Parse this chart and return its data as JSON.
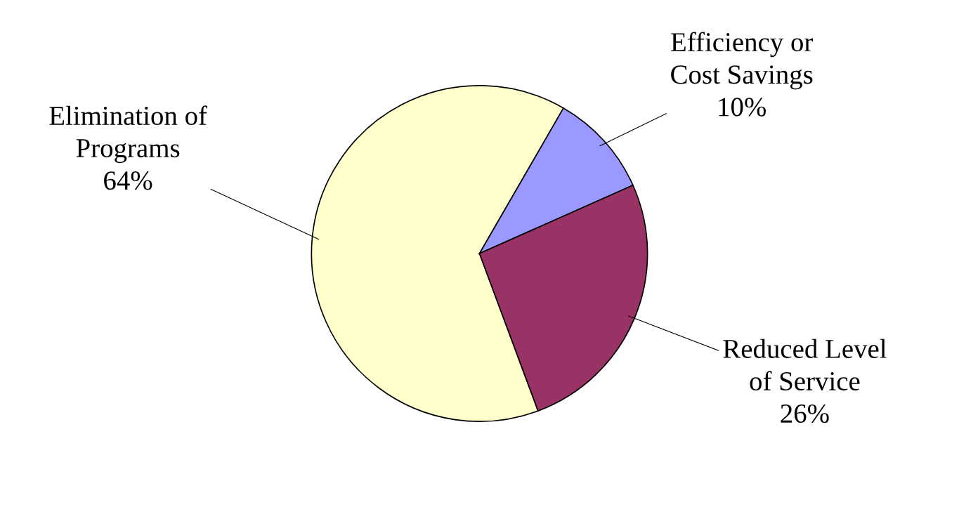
{
  "chart_data": {
    "type": "pie",
    "categories": [
      "Elimination of\nPrograms",
      "Efficiency or\nCost Savings",
      "Reduced Level\nof Service"
    ],
    "values": [
      64,
      10,
      26
    ],
    "value_labels": [
      "64%",
      "10%",
      "26%"
    ],
    "colors": [
      "#ffffcc",
      "#9999ff",
      "#993366"
    ],
    "legend": false
  }
}
